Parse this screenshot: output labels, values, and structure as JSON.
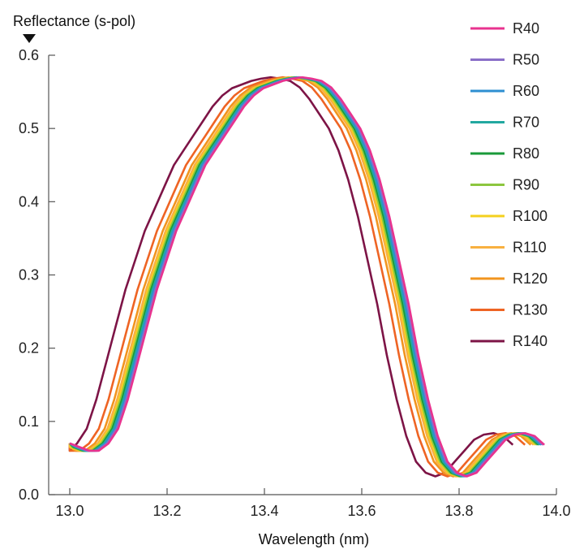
{
  "chart_data": {
    "type": "line",
    "title": "",
    "ylabel": "Reflectance (s-pol)",
    "xlabel": "Wavelength (nm)",
    "xlim": [
      13.0,
      14.0
    ],
    "ylim": [
      0.0,
      0.6
    ],
    "xticks": [
      "13.0",
      "13.2",
      "13.4",
      "13.6",
      "13.8",
      "14.0"
    ],
    "yticks": [
      "0.0",
      "0.1",
      "0.2",
      "0.3",
      "0.4",
      "0.5",
      "0.6"
    ],
    "grid": false,
    "legend_position": "top-right",
    "series": [
      {
        "name": "R40",
        "color": "#e8338f",
        "shift": 0.0,
        "x": [
          13.0,
          13.02,
          13.04,
          13.06,
          13.08,
          13.1,
          13.12,
          13.14,
          13.16,
          13.18,
          13.2,
          13.22,
          13.24,
          13.26,
          13.28,
          13.3,
          13.32,
          13.34,
          13.36,
          13.38,
          13.4,
          13.42,
          13.44,
          13.46,
          13.48,
          13.5,
          13.52,
          13.54,
          13.56,
          13.58,
          13.6,
          13.62,
          13.64,
          13.66,
          13.68,
          13.7,
          13.72,
          13.74,
          13.76,
          13.78,
          13.8,
          13.82,
          13.84,
          13.86,
          13.88,
          13.9,
          13.92,
          13.94,
          13.96,
          13.98
        ],
        "y": [
          0.07,
          0.065,
          0.06,
          0.06,
          0.07,
          0.09,
          0.13,
          0.18,
          0.23,
          0.28,
          0.32,
          0.36,
          0.39,
          0.42,
          0.45,
          0.47,
          0.49,
          0.51,
          0.53,
          0.545,
          0.555,
          0.56,
          0.565,
          0.568,
          0.57,
          0.568,
          0.565,
          0.556,
          0.54,
          0.52,
          0.5,
          0.47,
          0.43,
          0.38,
          0.32,
          0.26,
          0.19,
          0.13,
          0.08,
          0.045,
          0.03,
          0.025,
          0.03,
          0.045,
          0.06,
          0.075,
          0.082,
          0.084,
          0.08,
          0.068
        ]
      },
      {
        "name": "R50",
        "color": "#8a6fc8",
        "shift": -0.003
      },
      {
        "name": "R60",
        "color": "#2e8fd1",
        "shift": -0.006
      },
      {
        "name": "R70",
        "color": "#22a8a0",
        "shift": -0.009
      },
      {
        "name": "R80",
        "color": "#1a9a3a",
        "shift": -0.012
      },
      {
        "name": "R90",
        "color": "#8cc63f",
        "shift": -0.015
      },
      {
        "name": "R100",
        "color": "#f4d01e",
        "shift": -0.018
      },
      {
        "name": "R110",
        "color": "#f8b040",
        "shift": -0.022
      },
      {
        "name": "R120",
        "color": "#f2941e",
        "shift": -0.028
      },
      {
        "name": "R130",
        "color": "#ee6424",
        "shift": -0.04
      },
      {
        "name": "R140",
        "color": "#7d1446",
        "shift": -0.065
      }
    ]
  }
}
